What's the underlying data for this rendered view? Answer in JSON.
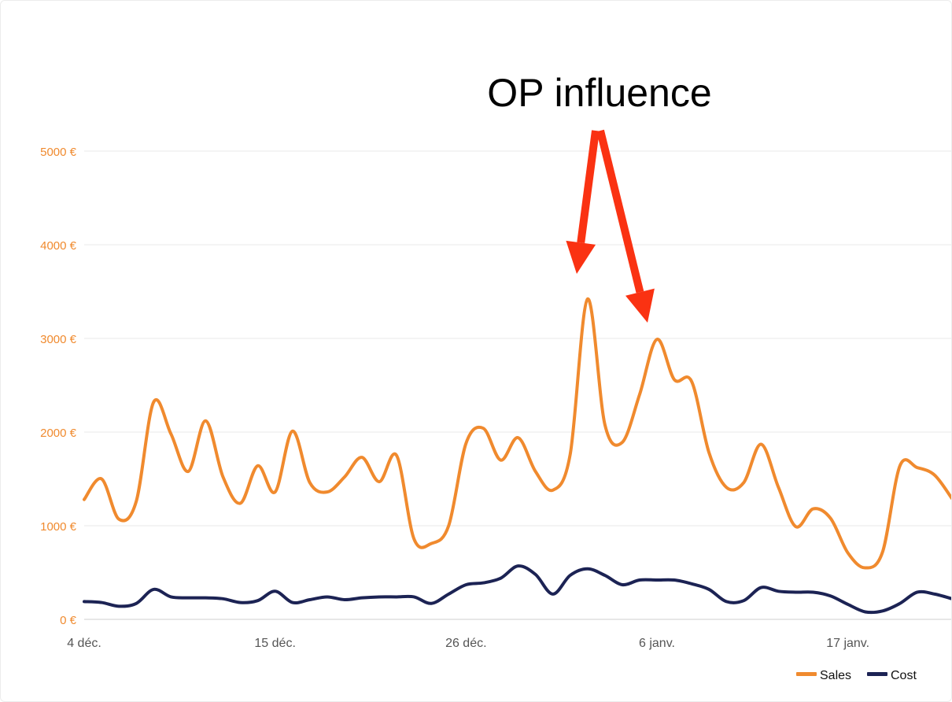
{
  "annotation": {
    "text": "OP influence",
    "color": "#fa3212"
  },
  "colors": {
    "sales": "#f08a2e",
    "cost": "#1c2354",
    "ytick": "#f08a2e",
    "xtick": "#555555",
    "grid": "#e9e9e9"
  },
  "chart_data": {
    "type": "line",
    "title": "",
    "xlabel": "",
    "ylabel": "",
    "ylim": [
      0,
      5000
    ],
    "yticks": [
      0,
      1000,
      2000,
      3000,
      4000,
      5000
    ],
    "ytick_labels": [
      "0 €",
      "1000 €",
      "2000 €",
      "3000 €",
      "4000 €",
      "5000 €"
    ],
    "xtick_labels": [
      "4 déc.",
      "15 déc.",
      "26 déc.",
      "6 janv.",
      "17 janv."
    ],
    "xtick_index": [
      0,
      11,
      22,
      33,
      44
    ],
    "grid": true,
    "legend": {
      "placement": "bottom-right"
    },
    "series": [
      {
        "name": "Sales",
        "values": [
          1280,
          1500,
          1070,
          1260,
          2320,
          1980,
          1580,
          2120,
          1520,
          1240,
          1640,
          1360,
          2010,
          1460,
          1360,
          1520,
          1730,
          1470,
          1750,
          860,
          810,
          1000,
          1880,
          2040,
          1700,
          1940,
          1580,
          1380,
          1760,
          3420,
          2080,
          1890,
          2400,
          2990,
          2560,
          2540,
          1780,
          1410,
          1460,
          1870,
          1410,
          990,
          1180,
          1080,
          710,
          550,
          720,
          1640,
          1620,
          1540,
          1290
        ]
      },
      {
        "name": "Cost",
        "values": [
          190,
          180,
          140,
          170,
          320,
          240,
          230,
          230,
          220,
          180,
          200,
          300,
          180,
          210,
          240,
          210,
          230,
          240,
          240,
          240,
          170,
          270,
          370,
          390,
          440,
          570,
          480,
          270,
          470,
          540,
          470,
          370,
          420,
          420,
          420,
          380,
          320,
          190,
          200,
          340,
          300,
          290,
          290,
          250,
          160,
          80,
          90,
          170,
          290,
          270,
          220
        ]
      }
    ]
  }
}
